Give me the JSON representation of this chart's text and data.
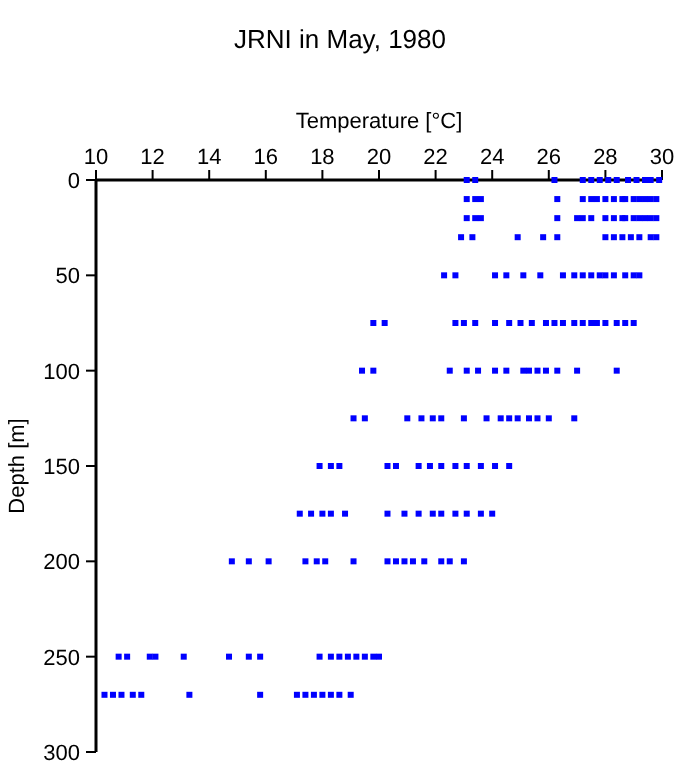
{
  "chart_data": {
    "type": "scatter",
    "title": "JRNI in May, 1980",
    "xlabel": "Temperature [°C]",
    "ylabel": "Depth [m]",
    "xlim": [
      10,
      30
    ],
    "xticks": [
      10,
      12,
      14,
      16,
      18,
      20,
      22,
      24,
      26,
      28,
      30
    ],
    "ylim": [
      300,
      0
    ],
    "yticks": [
      0,
      50,
      100,
      150,
      200,
      250,
      300
    ],
    "marker": "square",
    "grid": false,
    "series": [
      {
        "color": "#0000ff",
        "x": [
          23.1,
          23.4,
          26.2,
          27.2,
          27.5,
          27.8,
          28.1,
          28.4,
          28.8,
          29.1,
          29.4,
          29.6,
          29.9,
          23.1,
          23.4,
          23.6,
          26.3,
          27.2,
          27.5,
          27.7,
          28.0,
          28.3,
          28.6,
          28.7,
          29.0,
          29.2,
          29.4,
          29.6,
          29.8,
          23.1,
          23.4,
          23.6,
          26.3,
          27.0,
          27.2,
          27.5,
          28.0,
          28.3,
          28.6,
          28.7,
          29.0,
          29.2,
          29.4,
          29.6,
          29.8,
          22.9,
          23.3,
          24.9,
          25.8,
          26.3,
          28.0,
          28.3,
          28.6,
          28.9,
          29.2,
          29.6,
          29.8,
          22.3,
          22.7,
          24.1,
          24.5,
          25.1,
          25.7,
          26.5,
          26.9,
          27.2,
          27.5,
          27.8,
          28.0,
          28.3,
          28.7,
          29.0,
          29.2,
          19.8,
          20.2,
          22.7,
          23.0,
          23.4,
          24.1,
          24.6,
          25.0,
          25.4,
          25.9,
          26.2,
          26.5,
          26.9,
          27.2,
          27.5,
          27.7,
          28.0,
          28.4,
          28.7,
          29.0,
          19.4,
          19.8,
          22.5,
          23.1,
          23.5,
          24.1,
          24.5,
          25.1,
          25.3,
          25.6,
          25.9,
          26.3,
          27.0,
          28.4,
          19.1,
          19.5,
          21.0,
          21.5,
          21.9,
          22.2,
          23.0,
          23.8,
          24.3,
          24.6,
          24.9,
          25.3,
          25.6,
          26.0,
          26.9,
          17.9,
          18.3,
          18.6,
          20.3,
          20.6,
          21.4,
          21.8,
          22.2,
          22.7,
          23.1,
          23.6,
          24.1,
          24.6,
          17.2,
          17.6,
          18.0,
          18.3,
          18.8,
          20.3,
          20.9,
          21.4,
          21.9,
          22.2,
          22.7,
          23.1,
          23.6,
          24.0,
          14.8,
          15.4,
          16.1,
          17.4,
          17.8,
          18.1,
          19.1,
          20.3,
          20.6,
          20.9,
          21.2,
          21.6,
          22.2,
          22.5,
          23.0,
          10.8,
          11.1,
          11.9,
          12.1,
          13.1,
          14.7,
          15.4,
          15.8,
          17.9,
          18.3,
          18.6,
          18.9,
          19.2,
          19.5,
          19.8,
          20.0,
          10.3,
          10.6,
          10.9,
          11.3,
          11.6,
          13.3,
          15.8,
          17.1,
          17.4,
          17.7,
          18.0,
          18.3,
          18.6,
          19.0
        ],
        "values": [
          0,
          0,
          0,
          0,
          0,
          0,
          0,
          0,
          0,
          0,
          0,
          0,
          0,
          10,
          10,
          10,
          10,
          10,
          10,
          10,
          10,
          10,
          10,
          10,
          10,
          10,
          10,
          10,
          10,
          20,
          20,
          20,
          20,
          20,
          20,
          20,
          20,
          20,
          20,
          20,
          20,
          20,
          20,
          20,
          20,
          30,
          30,
          30,
          30,
          30,
          30,
          30,
          30,
          30,
          30,
          30,
          30,
          50,
          50,
          50,
          50,
          50,
          50,
          50,
          50,
          50,
          50,
          50,
          50,
          50,
          50,
          50,
          50,
          75,
          75,
          75,
          75,
          75,
          75,
          75,
          75,
          75,
          75,
          75,
          75,
          75,
          75,
          75,
          75,
          75,
          75,
          75,
          75,
          100,
          100,
          100,
          100,
          100,
          100,
          100,
          100,
          100,
          100,
          100,
          100,
          100,
          100,
          125,
          125,
          125,
          125,
          125,
          125,
          125,
          125,
          125,
          125,
          125,
          125,
          125,
          125,
          125,
          150,
          150,
          150,
          150,
          150,
          150,
          150,
          150,
          150,
          150,
          150,
          150,
          150,
          175,
          175,
          175,
          175,
          175,
          175,
          175,
          175,
          175,
          175,
          175,
          175,
          175,
          175,
          200,
          200,
          200,
          200,
          200,
          200,
          200,
          200,
          200,
          200,
          200,
          200,
          200,
          200,
          200,
          250,
          250,
          250,
          250,
          250,
          250,
          250,
          250,
          250,
          250,
          250,
          250,
          250,
          250,
          250,
          250,
          270,
          270,
          270,
          270,
          270,
          270,
          270,
          270,
          270,
          270,
          270,
          270,
          270,
          270
        ]
      }
    ]
  }
}
